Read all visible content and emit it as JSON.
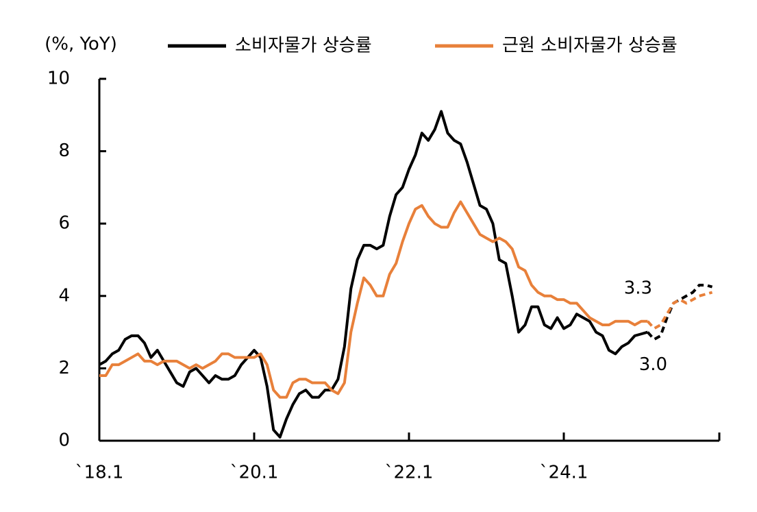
{
  "chart_data": {
    "type": "line",
    "y_label": "(%, YoY)",
    "categories": [
      "`18.1",
      null,
      null,
      null,
      null,
      null,
      null,
      null,
      null,
      null,
      null,
      null,
      null,
      null,
      null,
      null,
      null,
      null,
      null,
      null,
      null,
      null,
      null,
      null,
      "`20.1",
      null,
      null,
      null,
      null,
      null,
      null,
      null,
      null,
      null,
      null,
      null,
      null,
      null,
      null,
      null,
      null,
      null,
      null,
      null,
      null,
      null,
      null,
      null,
      "`22.1",
      null,
      null,
      null,
      null,
      null,
      null,
      null,
      null,
      null,
      null,
      null,
      null,
      null,
      null,
      null,
      null,
      null,
      null,
      null,
      null,
      null,
      null,
      null,
      "`24.1",
      null,
      null,
      null,
      null,
      null,
      null,
      null,
      null,
      null,
      null,
      null,
      null,
      null,
      null,
      null,
      null,
      null,
      null,
      null,
      null,
      null,
      null,
      null
    ],
    "forecast_start": 85,
    "series": [
      {
        "name": "소비자물가 상승률",
        "color": "#000000",
        "values": [
          2.1,
          2.2,
          2.4,
          2.5,
          2.8,
          2.9,
          2.9,
          2.7,
          2.3,
          2.5,
          2.2,
          1.9,
          1.6,
          1.5,
          1.9,
          2.0,
          1.8,
          1.6,
          1.8,
          1.7,
          1.7,
          1.8,
          2.1,
          2.3,
          2.5,
          2.3,
          1.5,
          0.3,
          0.1,
          0.6,
          1.0,
          1.3,
          1.4,
          1.2,
          1.2,
          1.4,
          1.4,
          1.7,
          2.6,
          4.2,
          5.0,
          5.4,
          5.4,
          5.3,
          5.4,
          6.2,
          6.8,
          7.0,
          7.5,
          7.9,
          8.5,
          8.3,
          8.6,
          9.1,
          8.5,
          8.3,
          8.2,
          7.7,
          7.1,
          6.5,
          6.4,
          6.0,
          5.0,
          4.9,
          4.0,
          3.0,
          3.2,
          3.7,
          3.7,
          3.2,
          3.1,
          3.4,
          3.1,
          3.2,
          3.5,
          3.4,
          3.3,
          3.0,
          2.9,
          2.5,
          2.4,
          2.6,
          2.7,
          2.9,
          2.95,
          3.0,
          2.8,
          2.9,
          3.4,
          3.8,
          3.9,
          4.0,
          4.1,
          4.3,
          4.3,
          4.25
        ],
        "value_labels": [
          null,
          null,
          null,
          null,
          null,
          null,
          null,
          null,
          null,
          null,
          null,
          null,
          null,
          null,
          null,
          null,
          null,
          null,
          null,
          null,
          null,
          null,
          null,
          null,
          null,
          null,
          null,
          null,
          null,
          null,
          null,
          null,
          null,
          null,
          null,
          null,
          null,
          null,
          null,
          null,
          null,
          null,
          null,
          null,
          null,
          null,
          null,
          null,
          null,
          null,
          null,
          null,
          null,
          null,
          null,
          null,
          null,
          null,
          null,
          null,
          null,
          null,
          null,
          null,
          null,
          null,
          null,
          null,
          null,
          null,
          null,
          null,
          null,
          null,
          null,
          null,
          null,
          null,
          null,
          null,
          null,
          null,
          null,
          null,
          null,
          "3.0",
          null,
          null,
          null,
          null,
          null,
          null,
          null,
          null,
          null,
          null
        ]
      },
      {
        "name": "근원 소비자물가 상승률",
        "color": "#e8803a",
        "values": [
          1.8,
          1.8,
          2.1,
          2.1,
          2.2,
          2.3,
          2.4,
          2.2,
          2.2,
          2.1,
          2.2,
          2.2,
          2.2,
          2.1,
          2.0,
          2.1,
          2.0,
          2.1,
          2.2,
          2.4,
          2.4,
          2.3,
          2.3,
          2.3,
          2.3,
          2.4,
          2.1,
          1.4,
          1.2,
          1.2,
          1.6,
          1.7,
          1.7,
          1.6,
          1.6,
          1.6,
          1.4,
          1.3,
          1.6,
          3.0,
          3.8,
          4.5,
          4.3,
          4.0,
          4.0,
          4.6,
          4.9,
          5.5,
          6.0,
          6.4,
          6.5,
          6.2,
          6.0,
          5.9,
          5.9,
          6.3,
          6.6,
          6.3,
          6.0,
          5.7,
          5.6,
          5.5,
          5.6,
          5.5,
          5.3,
          4.8,
          4.7,
          4.3,
          4.1,
          4.0,
          4.0,
          3.9,
          3.9,
          3.8,
          3.8,
          3.6,
          3.4,
          3.3,
          3.2,
          3.2,
          3.3,
          3.3,
          3.3,
          3.2,
          3.3,
          3.3,
          3.1,
          3.2,
          3.5,
          3.8,
          3.9,
          3.8,
          3.9,
          4.0,
          4.05,
          4.1
        ],
        "value_labels": [
          null,
          null,
          null,
          null,
          null,
          null,
          null,
          null,
          null,
          null,
          null,
          null,
          null,
          null,
          null,
          null,
          null,
          null,
          null,
          null,
          null,
          null,
          null,
          null,
          null,
          null,
          null,
          null,
          null,
          null,
          null,
          null,
          null,
          null,
          null,
          null,
          null,
          null,
          null,
          null,
          null,
          null,
          null,
          null,
          null,
          null,
          null,
          null,
          null,
          null,
          null,
          null,
          null,
          null,
          null,
          null,
          null,
          null,
          null,
          null,
          null,
          null,
          null,
          null,
          null,
          null,
          null,
          null,
          null,
          null,
          null,
          null,
          null,
          null,
          null,
          null,
          null,
          null,
          null,
          null,
          null,
          null,
          null,
          null,
          null,
          "3.3",
          null,
          null,
          null,
          null,
          null,
          null,
          null,
          null,
          null,
          null
        ]
      }
    ],
    "ylim": [
      0,
      10
    ],
    "yticks": [
      0,
      2,
      4,
      6,
      8,
      10
    ]
  }
}
